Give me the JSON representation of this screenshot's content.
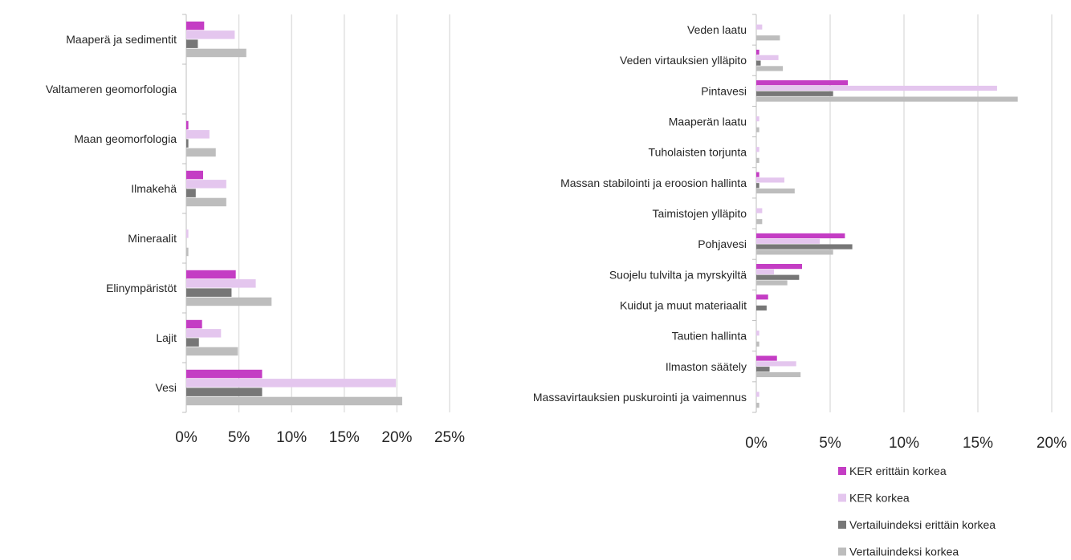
{
  "series_colors": [
    "#c43dc4",
    "#e4c6ee",
    "#777777",
    "#bdbdbd"
  ],
  "legend": {
    "items": [
      "KER erittäin korkea",
      "KER korkea",
      "Vertailuindeksi erittäin korkea",
      "Vertailuindeksi korkea"
    ]
  },
  "chart_data": [
    {
      "type": "bar",
      "orientation": "horizontal",
      "title": "",
      "xlabel": "",
      "ylabel": "",
      "categories": [
        "Maaperä ja sedimentit",
        "Valtameren geomorfologia",
        "Maan geomorfologia",
        "Ilmakehä",
        "Mineraalit",
        "Elinympäristöt",
        "Lajit",
        "Vesi"
      ],
      "series": [
        {
          "name": "KER erittäin korkea",
          "values": [
            1.7,
            0,
            0.2,
            1.6,
            0,
            4.7,
            1.5,
            7.2
          ]
        },
        {
          "name": "KER korkea",
          "values": [
            4.6,
            0,
            2.2,
            3.8,
            0.2,
            6.6,
            3.3,
            19.9
          ]
        },
        {
          "name": "Vertailuindeksi erittäin korkea",
          "values": [
            1.1,
            0,
            0.2,
            0.9,
            0,
            4.3,
            1.2,
            7.2
          ]
        },
        {
          "name": "Vertailuindeksi korkea",
          "values": [
            5.7,
            0,
            2.8,
            3.8,
            0.2,
            8.1,
            4.9,
            20.5
          ]
        }
      ],
      "xlim": [
        0,
        25
      ],
      "ticks": [
        "0%",
        "5%",
        "10%",
        "15%",
        "20%",
        "25%"
      ],
      "grid": "vertical"
    },
    {
      "type": "bar",
      "orientation": "horizontal",
      "title": "",
      "xlabel": "",
      "ylabel": "",
      "categories": [
        "Veden laatu",
        "Veden virtauksien ylläpito",
        "Pintavesi",
        "Maaperän laatu",
        "Tuholaisten torjunta",
        "Massan stabilointi ja eroosion hallinta",
        "Taimistojen ylläpito",
        "Pohjavesi",
        "Suojelu tulvilta ja myrskyiltä",
        "Kuidut ja muut materiaalit",
        "Tautien hallinta",
        "Ilmaston säätely",
        "Massavirtauksien puskurointi ja vaimennus"
      ],
      "series": [
        {
          "name": "KER erittäin korkea",
          "values": [
            0,
            0.2,
            6.2,
            0,
            0,
            0.2,
            0,
            6.0,
            3.1,
            0.8,
            0,
            1.4,
            0
          ]
        },
        {
          "name": "KER korkea",
          "values": [
            0.4,
            1.5,
            16.3,
            0.2,
            0.2,
            1.9,
            0.4,
            4.3,
            1.2,
            0,
            0.2,
            2.7,
            0.2
          ]
        },
        {
          "name": "Vertailuindeksi erittäin korkea",
          "values": [
            0,
            0.3,
            5.2,
            0,
            0,
            0.2,
            0,
            6.5,
            2.9,
            0.7,
            0,
            0.9,
            0
          ]
        },
        {
          "name": "Vertailuindeksi korkea",
          "values": [
            1.6,
            1.8,
            17.7,
            0.2,
            0.2,
            2.6,
            0.4,
            5.2,
            2.1,
            0,
            0.2,
            3.0,
            0.2
          ]
        }
      ],
      "xlim": [
        0,
        20
      ],
      "ticks": [
        "0%",
        "5%",
        "10%",
        "15%",
        "20%"
      ],
      "grid": "vertical"
    }
  ]
}
